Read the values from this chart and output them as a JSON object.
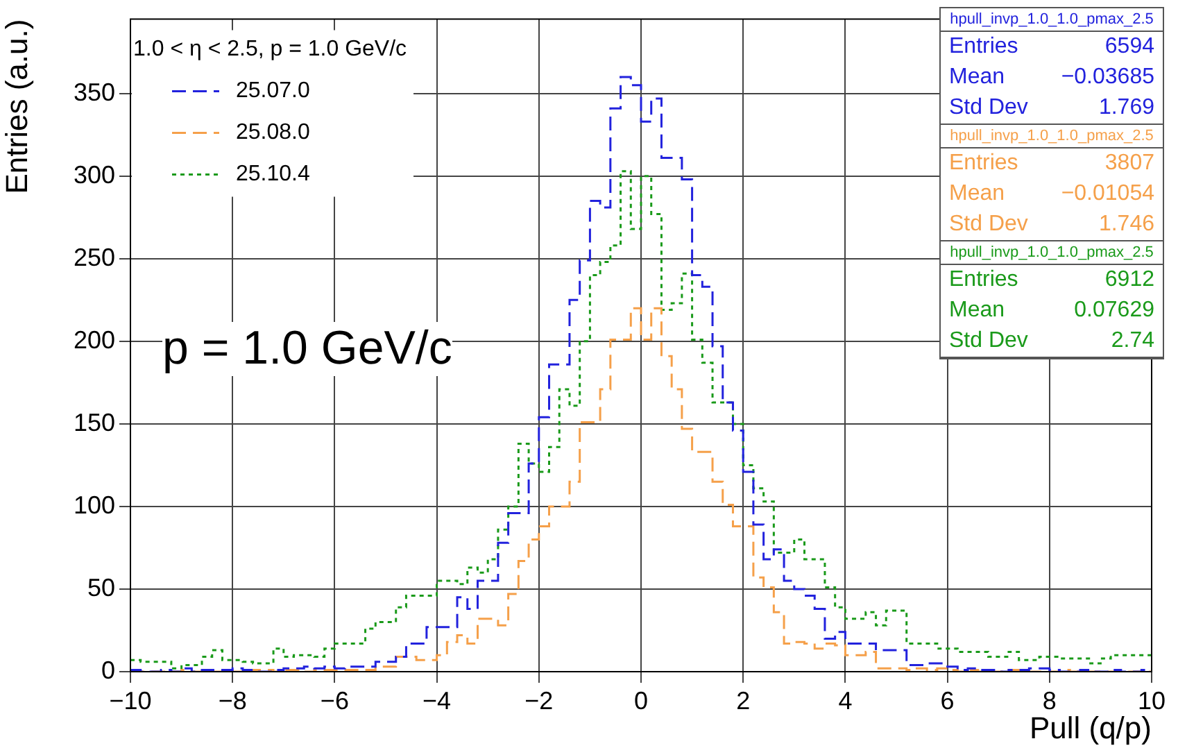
{
  "chart_data": {
    "type": "histogram",
    "xlabel": "Pull (q/p)",
    "ylabel": "Entries (a.u.)",
    "legend_title": "1.0 < η < 2.5, p = 1.0 GeV/c",
    "bins": [
      -10,
      -9.8,
      -9.6,
      -9.4,
      -9.2,
      -9,
      -8.8,
      -8.6,
      -8.4,
      -8.2,
      -8,
      -7.8,
      -7.6,
      -7.4,
      -7.2,
      -7,
      -6.8,
      -6.6,
      -6.4,
      -6.2,
      -6,
      -5.8,
      -5.6,
      -5.4,
      -5.2,
      -5,
      -4.8,
      -4.6,
      -4.4,
      -4.2,
      -4,
      -3.8,
      -3.6,
      -3.4,
      -3.2,
      -3,
      -2.8,
      -2.6,
      -2.4,
      -2.2,
      -2,
      -1.8,
      -1.6,
      -1.4,
      -1.2,
      -1,
      -0.8,
      -0.6,
      -0.4,
      -0.2,
      0,
      0.2,
      0.4,
      0.6,
      0.8,
      1,
      1.2,
      1.4,
      1.6,
      1.8,
      2,
      2.2,
      2.4,
      2.6,
      2.8,
      3,
      3.2,
      3.4,
      3.6,
      3.8,
      4,
      4.2,
      4.4,
      4.6,
      4.8,
      5,
      5.2,
      5.4,
      5.6,
      5.8,
      6,
      6.2,
      6.4,
      6.6,
      6.8,
      7,
      7.2,
      7.4,
      7.6,
      7.8,
      8,
      8.2,
      8.4,
      8.6,
      8.8,
      9,
      9.2,
      9.4,
      9.6,
      9.8,
      10
    ],
    "series": [
      {
        "name": "25.07.0",
        "color": "#2222dd",
        "line_style": "dashed",
        "values": [
          1,
          0,
          0,
          1,
          0,
          2,
          0,
          1,
          1,
          1,
          2,
          1,
          0,
          0,
          1,
          2,
          2,
          3,
          2,
          3,
          2,
          3,
          3,
          3,
          6,
          6,
          9,
          17,
          17,
          27,
          27,
          27,
          45,
          38,
          55,
          55,
          78,
          96,
          96,
          126,
          154,
          186,
          186,
          225,
          249,
          285,
          281,
          341,
          360,
          355,
          333,
          347,
          311,
          311,
          298,
          240,
          233,
          197,
          163,
          146,
          121,
          89,
          68,
          74,
          55,
          50,
          46,
          38,
          20,
          24,
          17,
          17,
          17,
          13,
          13,
          13,
          4,
          4,
          5,
          5,
          3,
          1,
          2,
          1,
          1,
          0,
          1,
          1,
          2,
          2,
          1,
          0,
          0,
          1,
          0,
          0,
          1,
          0,
          0,
          1
        ]
      },
      {
        "name": "25.08.0",
        "color": "#f5a04a",
        "line_style": "dashed",
        "values": [
          0,
          0,
          0,
          0,
          0,
          1,
          0,
          0,
          0,
          1,
          0,
          0,
          1,
          1,
          0,
          1,
          1,
          0,
          1,
          1,
          1,
          1,
          1,
          1,
          3,
          3,
          9,
          9,
          7,
          7,
          10,
          18,
          22,
          17,
          32,
          32,
          28,
          47,
          67,
          80,
          88,
          100,
          100,
          115,
          151,
          151,
          171,
          201,
          201,
          220,
          201,
          220,
          191,
          171,
          147,
          133,
          133,
          115,
          101,
          88,
          88,
          57,
          51,
          36,
          17,
          18,
          17,
          14,
          17,
          16,
          10,
          10,
          12,
          2,
          2,
          2,
          1,
          2,
          1,
          2,
          1,
          0,
          1,
          0,
          0,
          0,
          1,
          0,
          0,
          0,
          0,
          1,
          0,
          0,
          0,
          0,
          0,
          0,
          0,
          0
        ]
      },
      {
        "name": "25.10.4",
        "color": "#1a9a1a",
        "line_style": "dotted",
        "values": [
          7,
          6,
          6,
          6,
          2,
          4,
          4,
          9,
          13,
          7,
          7,
          6,
          5,
          5,
          14,
          9,
          10,
          10,
          9,
          14,
          17,
          17,
          17,
          26,
          30,
          30,
          39,
          46,
          46,
          46,
          55,
          55,
          53,
          63,
          60,
          68,
          86,
          100,
          138,
          126,
          121,
          136,
          171,
          161,
          200,
          240,
          248,
          258,
          303,
          268,
          300,
          277,
          219,
          223,
          241,
          201,
          187,
          163,
          163,
          150,
          125,
          111,
          103,
          72,
          72,
          80,
          68,
          68,
          51,
          39,
          32,
          32,
          36,
          28,
          37,
          37,
          17,
          17,
          17,
          14,
          14,
          12,
          12,
          12,
          9,
          9,
          12,
          7,
          7,
          9,
          9,
          8,
          8,
          8,
          5,
          8,
          10,
          10,
          10,
          10
        ]
      }
    ],
    "xlim": [
      -10,
      10
    ],
    "xticks": [
      -10,
      -8,
      -6,
      -4,
      -2,
      0,
      2,
      4,
      6,
      8,
      10
    ],
    "ylim": [
      0,
      395
    ],
    "yticks": [
      0,
      50,
      100,
      150,
      200,
      250,
      300,
      350
    ],
    "grid": true,
    "legend": "top left",
    "annotations": [
      "p = 1.0 GeV/c",
      "hpull_invp_1.0_1.0_pmax_2.5",
      "Entries",
      "6594",
      "Mean",
      "−0.03685",
      "Std Dev",
      "1.769",
      "hpull_invp_1.0_1.0_pmax_2.5",
      "Entries",
      "3807",
      "Mean",
      "−0.01054",
      "Std Dev",
      "1.746",
      "hpull_invp_1.0_1.0_pmax_2.5",
      "Entries",
      "6912",
      "Mean",
      "0.07629",
      "Std Dev",
      "2.74"
    ]
  }
}
